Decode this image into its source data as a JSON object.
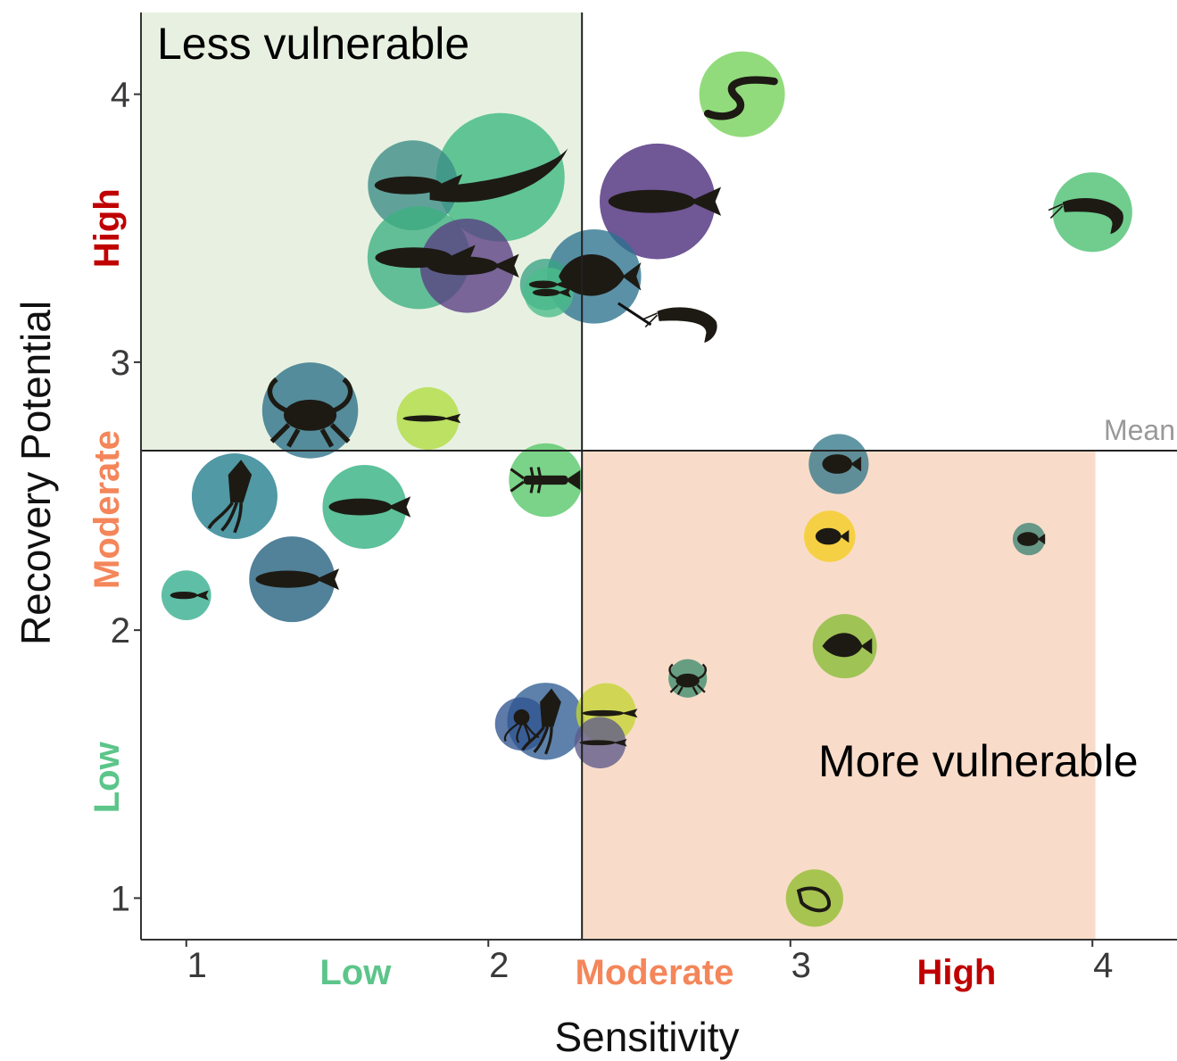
{
  "chart_data": {
    "type": "scatter",
    "xlabel": "Sensitivity",
    "ylabel": "Recovery Potential",
    "xlim": [
      0.85,
      4.28
    ],
    "ylim": [
      0.845,
      4.305
    ],
    "xticks": [
      "1",
      "2",
      "3",
      "4"
    ],
    "yticks": [
      "1",
      "2",
      "3",
      "4"
    ],
    "x_bands": [
      {
        "label": "Low",
        "center": 1.56,
        "color": "#5cc58a"
      },
      {
        "label": "Moderate",
        "center": 2.55,
        "color": "#f4865a"
      },
      {
        "label": "High",
        "center": 3.55,
        "color": "#c00000"
      }
    ],
    "y_bands": [
      {
        "label": "Low",
        "center": 1.45,
        "color": "#5cc58a"
      },
      {
        "label": "Moderate",
        "center": 2.45,
        "color": "#f4865a"
      },
      {
        "label": "High",
        "center": 3.5,
        "color": "#c00000"
      }
    ],
    "mean": {
      "label": "Mean",
      "x": 2.31,
      "y": 2.67
    },
    "quadrants": [
      {
        "label": "Less vulnerable",
        "x_range": [
          0.85,
          2.31
        ],
        "y_range": [
          2.67,
          4.305
        ],
        "color": "#e8f1e1"
      },
      {
        "label": "More vulnerable",
        "x_range": [
          2.31,
          4.01
        ],
        "y_range": [
          0.845,
          2.67
        ],
        "color": "#f8dcc9"
      }
    ],
    "points": [
      {
        "x": 2.84,
        "y": 4.0,
        "size": 1.0,
        "color": "#73d157",
        "icon": "eel-icon"
      },
      {
        "x": 2.04,
        "y": 3.69,
        "size": 1.5,
        "color": "#3bb77f",
        "icon": "ribbonfish-icon"
      },
      {
        "x": 1.75,
        "y": 3.66,
        "size": 1.05,
        "color": "#3a8c85",
        "icon": "mackerel-icon"
      },
      {
        "x": 2.56,
        "y": 3.6,
        "size": 1.35,
        "color": "#482878",
        "icon": "herring-icon"
      },
      {
        "x": 4.0,
        "y": 3.56,
        "size": 0.93,
        "color": "#48bf6e",
        "icon": "shrimp-icon"
      },
      {
        "x": 1.77,
        "y": 3.39,
        "size": 1.2,
        "color": "#3cb080",
        "icon": "tuna-icon"
      },
      {
        "x": 1.93,
        "y": 3.36,
        "size": 1.1,
        "color": "#5a3d83",
        "icon": "mackerel-icon"
      },
      {
        "x": 2.35,
        "y": 3.32,
        "size": 1.1,
        "color": "#2c728e",
        "icon": "butterfish-icon"
      },
      {
        "x": 2.19,
        "y": 3.29,
        "size": 0.6,
        "color": "#39a384",
        "icon": "bluefish-icon"
      },
      {
        "x": 2.2,
        "y": 3.26,
        "size": 0.58,
        "color": "#4cbc8a",
        "icon": "smallfish-icon"
      },
      {
        "x": 1.41,
        "y": 2.82,
        "size": 1.12,
        "color": "#2a6f87",
        "icon": "crab-icon"
      },
      {
        "x": 1.8,
        "y": 2.79,
        "size": 0.73,
        "color": "#b0dd3f",
        "icon": "sandlance-icon"
      },
      {
        "x": 2.19,
        "y": 2.56,
        "size": 0.86,
        "color": "#55c667",
        "icon": "lobster-icon"
      },
      {
        "x": 3.16,
        "y": 2.62,
        "size": 0.7,
        "color": "#34788a",
        "icon": "scup-icon"
      },
      {
        "x": 1.16,
        "y": 2.5,
        "size": 1.0,
        "color": "#1f7c8c",
        "icon": "squid-icon"
      },
      {
        "x": 1.59,
        "y": 2.46,
        "size": 0.98,
        "color": "#30b07f",
        "icon": "seabass-icon"
      },
      {
        "x": 3.13,
        "y": 2.35,
        "size": 0.6,
        "color": "#f5cd1f",
        "icon": "tautog-icon"
      },
      {
        "x": 3.79,
        "y": 2.34,
        "size": 0.38,
        "color": "#3e8475",
        "icon": "cunner-icon"
      },
      {
        "x": 1.35,
        "y": 2.19,
        "size": 1.0,
        "color": "#215e7e",
        "icon": "porgy-icon"
      },
      {
        "x": 1.0,
        "y": 2.13,
        "size": 0.58,
        "color": "#32ad8d",
        "icon": "anchovy-icon"
      },
      {
        "x": 3.18,
        "y": 1.94,
        "size": 0.75,
        "color": "#86bd35",
        "icon": "flounder-icon"
      },
      {
        "x": 2.66,
        "y": 1.82,
        "size": 0.45,
        "color": "#3d8d6d",
        "icon": "crab-icon"
      },
      {
        "x": 2.19,
        "y": 1.66,
        "size": 0.9,
        "color": "#2f5d93",
        "icon": "squid-icon"
      },
      {
        "x": 2.11,
        "y": 1.65,
        "size": 0.62,
        "color": "#2f5590",
        "icon": "octopus-icon"
      },
      {
        "x": 2.39,
        "y": 1.69,
        "size": 0.7,
        "color": "#c4d532",
        "icon": "needlefish-icon"
      },
      {
        "x": 2.37,
        "y": 1.58,
        "size": 0.6,
        "color": "#5e5b8a",
        "icon": "sandlance-icon"
      },
      {
        "x": 3.08,
        "y": 1.0,
        "size": 0.67,
        "color": "#8fbe2e",
        "icon": "krill-icon"
      }
    ],
    "callout": {
      "from": [
        2.43,
        3.22
      ],
      "to": [
        2.55,
        3.14
      ],
      "icon": "shrimp-icon"
    }
  }
}
